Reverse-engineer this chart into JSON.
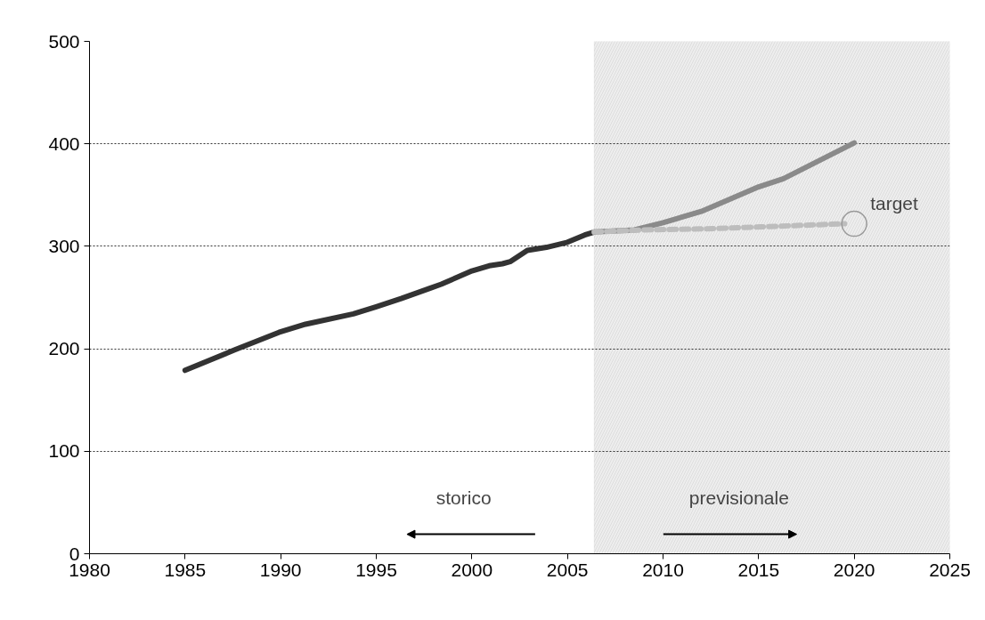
{
  "chart_data": {
    "type": "line",
    "xlim": [
      1980,
      2025
    ],
    "xticks": [
      1980,
      1985,
      1990,
      1995,
      2000,
      2005,
      2010,
      2015,
      2020,
      2025
    ],
    "ylim": [
      0,
      500
    ],
    "yticks": [
      0,
      100,
      200,
      300,
      400,
      500
    ],
    "grid": "y",
    "marker": "none",
    "series": [
      {
        "color": "#333333",
        "line_style": "solid",
        "x": [
          1985.0,
          1987.6,
          1989.9,
          1991.3,
          1993.8,
          1995.0,
          1996.3,
          1997.8,
          1998.4,
          2000.0,
          2000.9,
          2001.6,
          2002.0,
          2002.9,
          2003.9,
          2005.0,
          2005.9,
          2006.4
        ],
        "values": [
          179,
          199,
          216,
          224,
          234,
          241,
          249,
          259,
          263,
          276,
          281,
          283,
          285,
          296,
          299,
          304,
          311,
          314
        ]
      },
      {
        "color": "#8a8a8a",
        "line_style": "solid",
        "x": [
          2006.4,
          2008.5,
          2010,
          2012,
          2015,
          2016.3,
          2018,
          2020
        ],
        "values": [
          314,
          316,
          323,
          334,
          358,
          366,
          382,
          401
        ]
      },
      {
        "color": "#bdbdbd",
        "line_style": "dashed",
        "x": [
          2006.4,
          2009,
          2012.1,
          2015.1,
          2019.5
        ],
        "values": [
          314,
          316,
          317,
          319,
          322
        ]
      }
    ],
    "bands": [
      {
        "axis": "x",
        "from": 2006.4,
        "to": 2025,
        "color": "#eeeeee"
      }
    ],
    "annotations": [
      {
        "text": "target",
        "x": 2020,
        "y": 322
      },
      "storico",
      "previsionale"
    ]
  }
}
